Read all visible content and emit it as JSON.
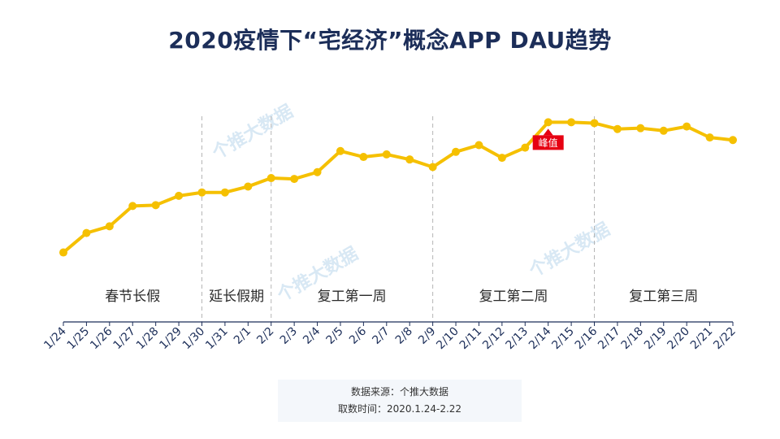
{
  "title": "2020疫情下“宅经济”概念APP DAU趋势",
  "watermark": "个推大数据",
  "footer": {
    "source": "数据来源：个推大数据",
    "period": "取数时间：2020.1.24-2.22"
  },
  "colors": {
    "line": "#f5c000",
    "peak_badge": "#e60012",
    "title": "#1c2e59",
    "axis": "#1c2e59",
    "divider": "#b5b5b5"
  },
  "chart_data": {
    "type": "line",
    "title": "2020疫情下“宅经济”概念APP DAU趋势",
    "xlabel": "",
    "ylabel": "",
    "y_axis_visible": false,
    "grid": false,
    "x": [
      "1/24",
      "1/25",
      "1/26",
      "1/27",
      "1/28",
      "1/29",
      "1/30",
      "1/31",
      "2/1",
      "2/2",
      "2/3",
      "2/4",
      "2/5",
      "2/6",
      "2/7",
      "2/8",
      "2/9",
      "2/10",
      "2/11",
      "2/12",
      "2/13",
      "2/14",
      "2/15",
      "2/16",
      "2/17",
      "2/18",
      "2/19",
      "2/20",
      "2/21",
      "2/22"
    ],
    "values": [
      11,
      34,
      42,
      66,
      67,
      78,
      82,
      82,
      89,
      99,
      98,
      106,
      131,
      124,
      127,
      121,
      112,
      130,
      138,
      123,
      135,
      165,
      165,
      164,
      157,
      158,
      155,
      160,
      147,
      144
    ],
    "ylim": [
      0,
      175
    ],
    "annotations": [
      {
        "x": "2/14",
        "label": "峰值"
      }
    ],
    "periods": [
      {
        "label": "春节长假",
        "start": "1/24",
        "end": "1/30"
      },
      {
        "label": "延长假期",
        "start": "1/30",
        "end": "2/2"
      },
      {
        "label": "复工第一周",
        "start": "2/2",
        "end": "2/9"
      },
      {
        "label": "复工第二周",
        "start": "2/9",
        "end": "2/16"
      },
      {
        "label": "复工第三周",
        "start": "2/16",
        "end": "2/22"
      }
    ]
  }
}
